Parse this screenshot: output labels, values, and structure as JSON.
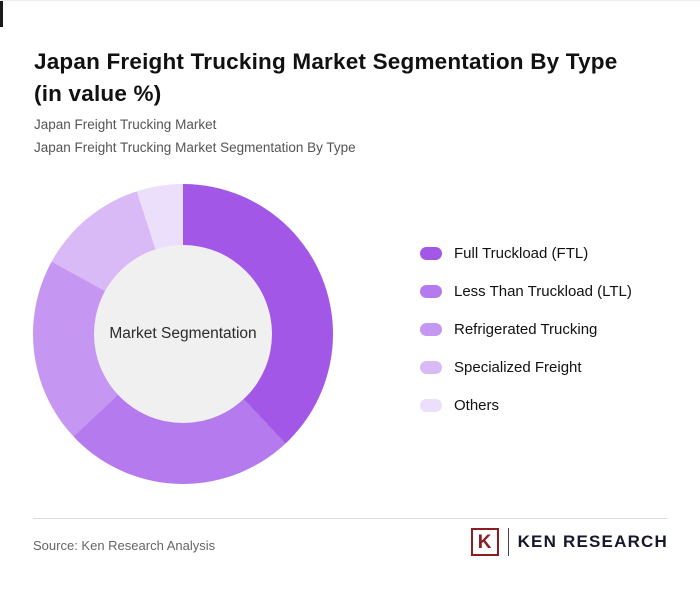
{
  "page": {
    "title_line1": "Japan Freight Trucking Market Segmentation By Type",
    "title_line2": "(in value %)",
    "subtitle_line1": "Japan Freight Trucking Market",
    "subtitle_line2": "Japan Freight Trucking Market Segmentation By Type",
    "source": "Source: Ken Research Analysis"
  },
  "logo": {
    "letter": "K",
    "text": "KEN RESEARCH",
    "color": "#8a1e22"
  },
  "chart_data": {
    "type": "pie",
    "subtype": "donut",
    "title": "Japan Freight Trucking Market Segmentation By Type (in value %)",
    "center_label": "Market Segmentation",
    "categories": [
      "Full Truckload (FTL)",
      "Less Than Truckload (LTL)",
      "Refrigerated Trucking",
      "Specialized Freight",
      "Others"
    ],
    "values": [
      38,
      25,
      20,
      12,
      5
    ],
    "colors": [
      "#a257e6",
      "#b57aee",
      "#c697f2",
      "#dab9f7",
      "#ecdffb"
    ],
    "start_angle_deg": 0,
    "direction": "clockwise",
    "legend_position": "right",
    "value_labels_shown": false,
    "hole_color": "#f0f0f0"
  }
}
